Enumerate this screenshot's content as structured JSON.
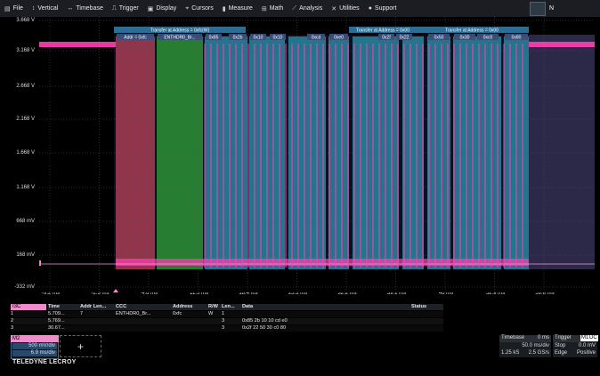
{
  "menu": [
    {
      "icon": "file-icon",
      "glyph": "▤",
      "label": "File"
    },
    {
      "icon": "vertical-icon",
      "glyph": "↕",
      "label": "Vertical"
    },
    {
      "icon": "timebase-icon",
      "glyph": "↔",
      "label": "Timebase"
    },
    {
      "icon": "trigger-icon",
      "glyph": "⎍",
      "label": "Trigger"
    },
    {
      "icon": "display-icon",
      "glyph": "▣",
      "label": "Display"
    },
    {
      "icon": "cursors-icon",
      "glyph": "⌖",
      "label": "Cursors"
    },
    {
      "icon": "measure-icon",
      "glyph": "▮",
      "label": "Measure"
    },
    {
      "icon": "math-icon",
      "glyph": "⊞",
      "label": "Math"
    },
    {
      "icon": "analysis-icon",
      "glyph": "⟋",
      "label": "Analysis"
    },
    {
      "icon": "utilities-icon",
      "glyph": "✕",
      "label": "Utilities"
    },
    {
      "icon": "support-icon",
      "glyph": "●",
      "label": "Support"
    }
  ],
  "window_label": "N",
  "y_ticks": [
    "3.668 V",
    "3.168 V",
    "2.668 V",
    "2.168 V",
    "1.668 V",
    "1.168 V",
    "668 mV",
    "168 mV",
    "-332 mV"
  ],
  "x_ticks": [
    "-9.2 ms",
    "-2.3 ms",
    "4.6 ms",
    "11.5 ms",
    "18.4 ms",
    "25.3 ms",
    "32.2 ms",
    "39.1 ms",
    "46 ms",
    "52.9 ms",
    "59.8 ms"
  ],
  "channel_marker": "M2",
  "transfers": [
    {
      "label": "Transfer at Address = 0xfc(W)"
    },
    {
      "label": "Transfer at Address = 0x00"
    },
    {
      "label": "Transfer at Address = 0x00"
    }
  ],
  "packet_labels": [
    "Addr = 0xfc",
    "ENTHDR0_Br...",
    "0x85",
    "0x2b",
    "0x10",
    "0x10",
    "0xcd",
    "0xe0",
    "0x2f",
    "0x22",
    "0x50",
    "0x30",
    "0xc0",
    "0x80"
  ],
  "colors": {
    "accent": "#f28ad0",
    "trace": "#ff3fb4",
    "addr": "#b0405a",
    "ccc": "#2e9a3a",
    "data": "#2f9fbf",
    "bg_tail": "#3a3560"
  },
  "decode_table": {
    "tab": "I3C",
    "headers": [
      "",
      "Time",
      "Addr Len...",
      "CCC",
      "Address",
      "R/W",
      "Len...",
      "Data",
      "Status"
    ],
    "rows": [
      [
        "1",
        "5.709...",
        "7",
        "ENTHDR0_Br...",
        "0xfc",
        "W",
        "1",
        "",
        ""
      ],
      [
        "2",
        "5.769...",
        "",
        "",
        "",
        "",
        "3",
        "0x85 2b 10 10 cd e0",
        ""
      ],
      [
        "3",
        "30.67...",
        "",
        "",
        "",
        "",
        "3",
        "0x2f 22 50 30 c0 80",
        ""
      ]
    ]
  },
  "channel_desc": {
    "title": "M2",
    "vdiv": "500 mV/div",
    "tdiv": "6.9 ms/div"
  },
  "add_button": "+",
  "brand": "TELEDYNE LECROY",
  "timebase": {
    "title": "Timebase",
    "offset": "0 ms",
    "tdiv": "50.0 ms/div",
    "samples": "1.25 kS",
    "rate": "2.5 GS/s"
  },
  "trigger": {
    "title": "Trigger",
    "badges": [
      "M1",
      "DC"
    ],
    "mode": "Stop",
    "level": "0.0 mV",
    "type": "Edge",
    "slope": "Positive"
  }
}
